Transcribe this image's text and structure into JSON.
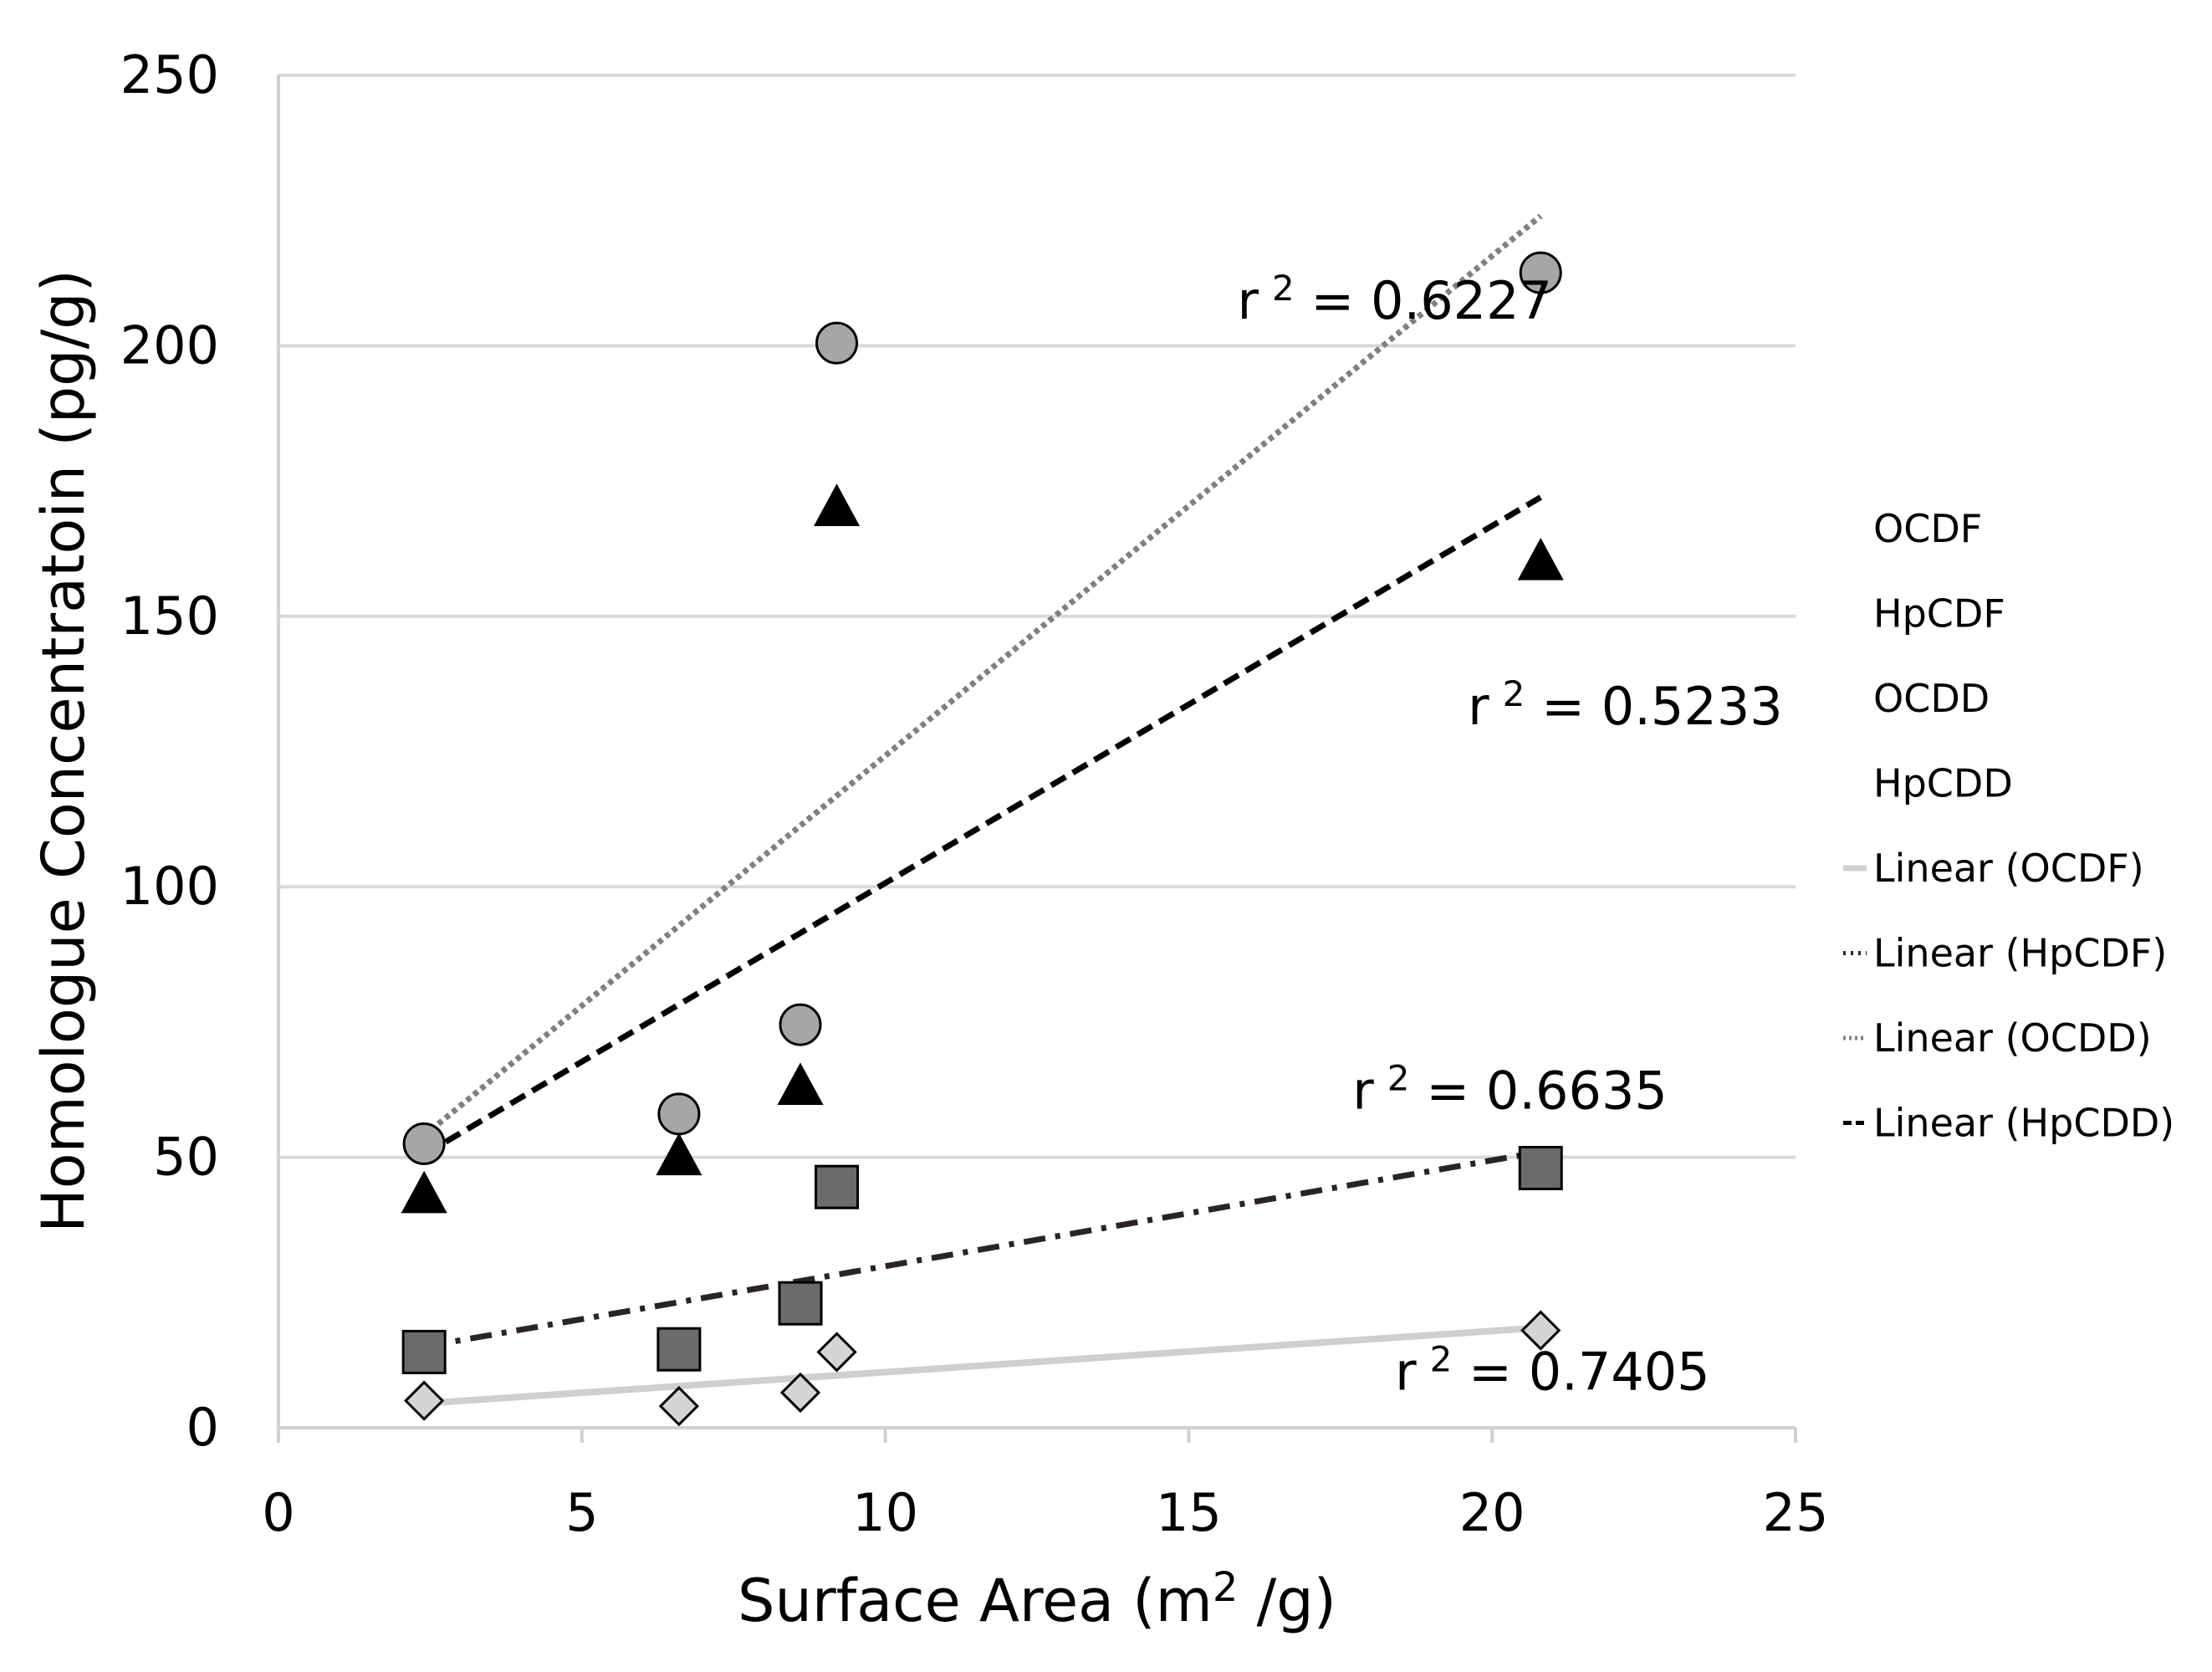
{
  "chart_data": {
    "type": "scatter",
    "title": "",
    "xlabel": "Surface Area (m",
    "xlabel_sup": "2",
    "xlabel_tail": " /g)",
    "ylabel": "Homologue Concentratoin (pg/g)",
    "xlim": [
      0,
      25
    ],
    "ylim": [
      0,
      250
    ],
    "x_ticks": [
      0,
      5,
      10,
      15,
      20,
      25
    ],
    "y_ticks": [
      0,
      50,
      100,
      150,
      200,
      250
    ],
    "grid": "horizontal",
    "legend_position": "right",
    "series": [
      {
        "name": "OCDF",
        "marker": "diamond",
        "color": "#d4d4d4",
        "points": [
          [
            2.4,
            5
          ],
          [
            6.6,
            4
          ],
          [
            8.6,
            6.5
          ],
          [
            9.2,
            14
          ],
          [
            20.8,
            18
          ]
        ]
      },
      {
        "name": "HpCDF",
        "marker": "square",
        "color": "#6b6b6b",
        "points": [
          [
            2.4,
            14
          ],
          [
            6.6,
            14.5
          ],
          [
            8.6,
            23
          ],
          [
            9.2,
            44.5
          ],
          [
            20.8,
            48
          ]
        ]
      },
      {
        "name": "OCDD",
        "marker": "circle",
        "color": "#a6a6a6",
        "points": [
          [
            2.4,
            52.5
          ],
          [
            6.6,
            58
          ],
          [
            8.6,
            74.5
          ],
          [
            9.2,
            200.5
          ],
          [
            20.8,
            213.5
          ]
        ]
      },
      {
        "name": "HpCDD",
        "marker": "triangle",
        "color": "#000000",
        "points": [
          [
            2.4,
            43
          ],
          [
            6.6,
            50
          ],
          [
            8.6,
            63
          ],
          [
            9.2,
            170
          ],
          [
            20.8,
            160
          ]
        ]
      }
    ],
    "trendlines": [
      {
        "name": "Linear (OCDF)",
        "style": "solid",
        "color": "#cfcfcf",
        "from": [
          2.4,
          4.5
        ],
        "to": [
          20.8,
          18.5
        ]
      },
      {
        "name": "Linear (HpCDF)",
        "style": "dashdot",
        "color": "#2a2424",
        "from": [
          2.4,
          15
        ],
        "to": [
          20.8,
          51
        ]
      },
      {
        "name": "Linear (OCDD)",
        "style": "dotted",
        "color": "#808080",
        "from": [
          2.4,
          54
        ],
        "to": [
          20.8,
          224
        ]
      },
      {
        "name": "Linear (HpCDD)",
        "style": "dashed",
        "color": "#000000",
        "from": [
          2.4,
          50.5
        ],
        "to": [
          20.8,
          172
        ]
      }
    ],
    "annotations": [
      {
        "text": "r² = 0.6227",
        "base": "r",
        "sup": "2",
        "rest": " = 0.6227",
        "x": 15.8,
        "y": 205
      },
      {
        "text": "r² = 0.5233",
        "base": "r",
        "sup": "2",
        "rest": " = 0.5233",
        "x": 19.6,
        "y": 130
      },
      {
        "text": "r² = 0.6635",
        "base": "r",
        "sup": "2",
        "rest": " = 0.6635",
        "x": 17.7,
        "y": 59
      },
      {
        "text": "r² = 0.7405",
        "base": "r",
        "sup": "2",
        "rest": " = 0.7405",
        "x": 18.4,
        "y": 7
      }
    ],
    "legend": [
      "OCDF",
      "HpCDF",
      "OCDD",
      "HpCDD",
      "Linear (OCDF)",
      "Linear (HpCDF)",
      "Linear (OCDD)",
      "Linear (HpCDD)"
    ]
  }
}
